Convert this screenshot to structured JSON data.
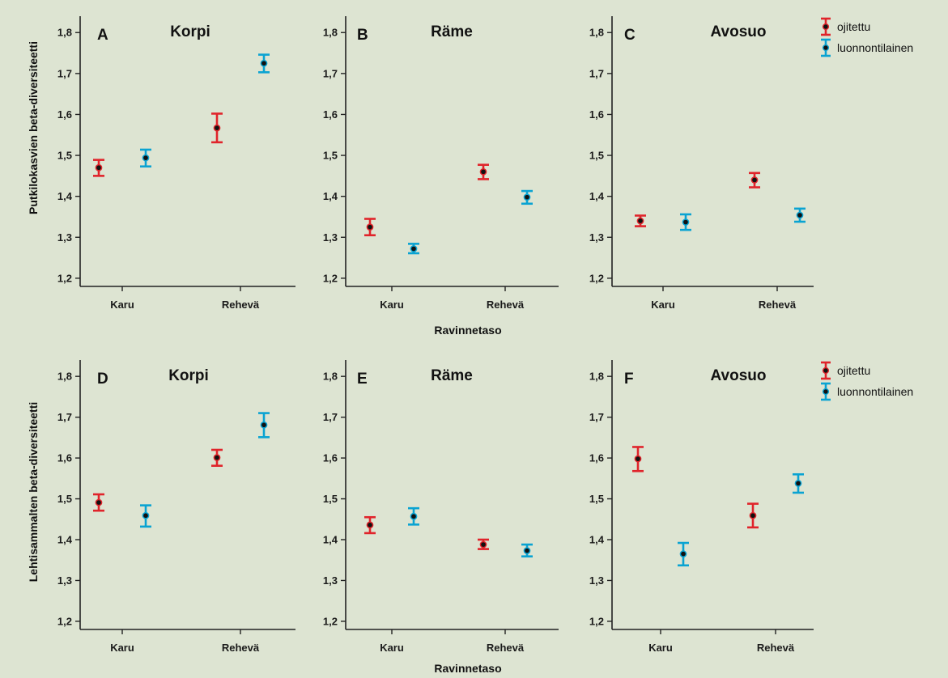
{
  "colors": {
    "ojitettu": "#e0242b",
    "luonnontilainen": "#0aa3d2",
    "point": "#111111"
  },
  "rows": [
    {
      "ylabel": "Putkilokasvien beta-diversiteetti",
      "xlabel": "Ravinnetaso"
    },
    {
      "ylabel": "Lehtisammalten beta-diversiteetti",
      "xlabel": "Ravinnetaso"
    }
  ],
  "chart_data": [
    {
      "type": "scatter",
      "panel": "A",
      "title": "Korpi",
      "categories": [
        "Karu",
        "Rehevä"
      ],
      "ylim": [
        1.18,
        1.84
      ],
      "yticks": [
        "1,2",
        "1,3",
        "1,4",
        "1,5",
        "1,6",
        "1,7",
        "1,8"
      ],
      "series": [
        {
          "name": "ojitettu",
          "values": [
            1.47,
            1.567
          ],
          "err_low": [
            1.45,
            1.532
          ],
          "err_high": [
            1.489,
            1.602
          ]
        },
        {
          "name": "luonnontilainen",
          "values": [
            1.494,
            1.725
          ],
          "err_low": [
            1.473,
            1.703
          ],
          "err_high": [
            1.514,
            1.746
          ]
        }
      ]
    },
    {
      "type": "scatter",
      "panel": "B",
      "title": "Räme",
      "categories": [
        "Karu",
        "Rehevä"
      ],
      "ylim": [
        1.18,
        1.84
      ],
      "yticks": [
        "1,2",
        "1,3",
        "1,4",
        "1,5",
        "1,6",
        "1,7",
        "1,8"
      ],
      "series": [
        {
          "name": "ojitettu",
          "values": [
            1.325,
            1.46
          ],
          "err_low": [
            1.305,
            1.442
          ],
          "err_high": [
            1.345,
            1.477
          ]
        },
        {
          "name": "luonnontilainen",
          "values": [
            1.272,
            1.398
          ],
          "err_low": [
            1.261,
            1.382
          ],
          "err_high": [
            1.284,
            1.413
          ]
        }
      ]
    },
    {
      "type": "scatter",
      "panel": "C",
      "title": "Avosuo",
      "categories": [
        "Karu",
        "Rehevä"
      ],
      "ylim": [
        1.18,
        1.84
      ],
      "yticks": [
        "1,2",
        "1,3",
        "1,4",
        "1,5",
        "1,6",
        "1,7",
        "1,8"
      ],
      "legend": "top-right",
      "series": [
        {
          "name": "ojitettu",
          "values": [
            1.34,
            1.44
          ],
          "err_low": [
            1.327,
            1.422
          ],
          "err_high": [
            1.353,
            1.457
          ]
        },
        {
          "name": "luonnontilainen",
          "values": [
            1.337,
            1.354
          ],
          "err_low": [
            1.318,
            1.338
          ],
          "err_high": [
            1.356,
            1.37
          ]
        }
      ]
    },
    {
      "type": "scatter",
      "panel": "D",
      "title": "Korpi",
      "categories": [
        "Karu",
        "Rehevä"
      ],
      "ylim": [
        1.18,
        1.84
      ],
      "yticks": [
        "1,2",
        "1,3",
        "1,4",
        "1,5",
        "1,6",
        "1,7",
        "1,8"
      ],
      "series": [
        {
          "name": "ojitettu",
          "values": [
            1.491,
            1.601
          ],
          "err_low": [
            1.471,
            1.581
          ],
          "err_high": [
            1.511,
            1.62
          ]
        },
        {
          "name": "luonnontilainen",
          "values": [
            1.459,
            1.681
          ],
          "err_low": [
            1.432,
            1.651
          ],
          "err_high": [
            1.484,
            1.71
          ]
        }
      ]
    },
    {
      "type": "scatter",
      "panel": "E",
      "title": "Räme",
      "categories": [
        "Karu",
        "Rehevä"
      ],
      "ylim": [
        1.18,
        1.84
      ],
      "yticks": [
        "1,2",
        "1,3",
        "1,4",
        "1,5",
        "1,6",
        "1,7",
        "1,8"
      ],
      "series": [
        {
          "name": "ojitettu",
          "values": [
            1.436,
            1.388
          ],
          "err_low": [
            1.416,
            1.377
          ],
          "err_high": [
            1.455,
            1.4
          ]
        },
        {
          "name": "luonnontilainen",
          "values": [
            1.457,
            1.373
          ],
          "err_low": [
            1.437,
            1.359
          ],
          "err_high": [
            1.477,
            1.388
          ]
        }
      ]
    },
    {
      "type": "scatter",
      "panel": "F",
      "title": "Avosuo",
      "categories": [
        "Karu",
        "Rehevä"
      ],
      "ylim": [
        1.18,
        1.84
      ],
      "yticks": [
        "1,2",
        "1,3",
        "1,4",
        "1,5",
        "1,6",
        "1,7",
        "1,8"
      ],
      "legend": "top-right",
      "series": [
        {
          "name": "ojitettu",
          "values": [
            1.598,
            1.459
          ],
          "err_low": [
            1.568,
            1.43
          ],
          "err_high": [
            1.627,
            1.488
          ]
        },
        {
          "name": "luonnontilainen",
          "values": [
            1.365,
            1.538
          ],
          "err_low": [
            1.337,
            1.515
          ],
          "err_high": [
            1.392,
            1.56
          ]
        }
      ]
    }
  ]
}
